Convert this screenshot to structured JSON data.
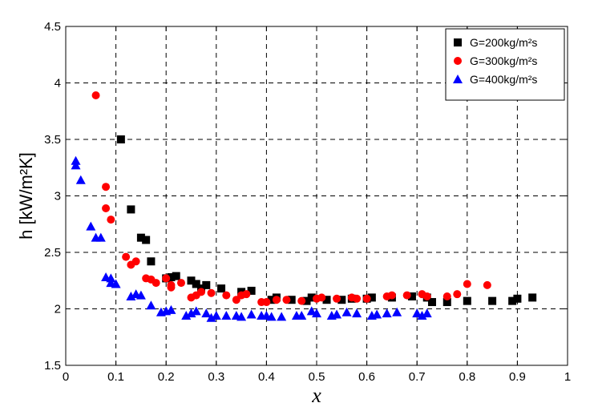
{
  "chart_data": {
    "type": "scatter",
    "xlabel": "x",
    "ylabel": "h [kW/m²K]",
    "xlim": [
      0,
      1
    ],
    "ylim": [
      1.5,
      4.5
    ],
    "xticks": [
      "0",
      "0.1",
      "0.2",
      "0.3",
      "0.4",
      "0.5",
      "0.6",
      "0.7",
      "0.8",
      "0.9",
      "1"
    ],
    "yticks": [
      "1.5",
      "2",
      "2.5",
      "3",
      "3.5",
      "4",
      "4.5"
    ],
    "grid": true,
    "legend_position": "top-right",
    "series": [
      {
        "name": "G=200kg/m²s",
        "marker": "square",
        "color": "#000000",
        "points": [
          [
            0.11,
            3.5
          ],
          [
            0.13,
            2.88
          ],
          [
            0.15,
            2.63
          ],
          [
            0.16,
            2.61
          ],
          [
            0.17,
            2.42
          ],
          [
            0.2,
            2.27
          ],
          [
            0.21,
            2.28
          ],
          [
            0.22,
            2.29
          ],
          [
            0.25,
            2.25
          ],
          [
            0.26,
            2.22
          ],
          [
            0.27,
            2.18
          ],
          [
            0.28,
            2.21
          ],
          [
            0.31,
            2.18
          ],
          [
            0.35,
            2.15
          ],
          [
            0.37,
            2.16
          ],
          [
            0.41,
            2.08
          ],
          [
            0.42,
            2.1
          ],
          [
            0.45,
            2.08
          ],
          [
            0.48,
            2.07
          ],
          [
            0.49,
            2.1
          ],
          [
            0.52,
            2.08
          ],
          [
            0.55,
            2.08
          ],
          [
            0.57,
            2.09
          ],
          [
            0.6,
            2.09
          ],
          [
            0.61,
            2.1
          ],
          [
            0.65,
            2.1
          ],
          [
            0.69,
            2.11
          ],
          [
            0.72,
            2.1
          ],
          [
            0.73,
            2.06
          ],
          [
            0.76,
            2.06
          ],
          [
            0.8,
            2.07
          ],
          [
            0.85,
            2.07
          ],
          [
            0.89,
            2.07
          ],
          [
            0.9,
            2.09
          ],
          [
            0.93,
            2.1
          ]
        ]
      },
      {
        "name": "G=300kg/m²s",
        "marker": "circle",
        "color": "#ff0000",
        "points": [
          [
            0.06,
            3.89
          ],
          [
            0.08,
            3.08
          ],
          [
            0.08,
            2.89
          ],
          [
            0.09,
            2.79
          ],
          [
            0.12,
            2.46
          ],
          [
            0.13,
            2.39
          ],
          [
            0.14,
            2.42
          ],
          [
            0.16,
            2.27
          ],
          [
            0.17,
            2.26
          ],
          [
            0.18,
            2.23
          ],
          [
            0.2,
            2.27
          ],
          [
            0.21,
            2.21
          ],
          [
            0.21,
            2.19
          ],
          [
            0.23,
            2.23
          ],
          [
            0.25,
            2.1
          ],
          [
            0.26,
            2.12
          ],
          [
            0.27,
            2.15
          ],
          [
            0.29,
            2.14
          ],
          [
            0.32,
            2.12
          ],
          [
            0.34,
            2.08
          ],
          [
            0.35,
            2.12
          ],
          [
            0.36,
            2.13
          ],
          [
            0.39,
            2.06
          ],
          [
            0.4,
            2.06
          ],
          [
            0.42,
            2.08
          ],
          [
            0.44,
            2.08
          ],
          [
            0.47,
            2.07
          ],
          [
            0.5,
            2.09
          ],
          [
            0.51,
            2.1
          ],
          [
            0.54,
            2.09
          ],
          [
            0.57,
            2.1
          ],
          [
            0.58,
            2.09
          ],
          [
            0.6,
            2.09
          ],
          [
            0.64,
            2.11
          ],
          [
            0.65,
            2.12
          ],
          [
            0.68,
            2.12
          ],
          [
            0.71,
            2.13
          ],
          [
            0.72,
            2.11
          ],
          [
            0.76,
            2.11
          ],
          [
            0.78,
            2.13
          ],
          [
            0.8,
            2.22
          ],
          [
            0.84,
            2.21
          ]
        ]
      },
      {
        "name": "G=400kg/m²s",
        "marker": "triangle",
        "color": "#0000ff",
        "points": [
          [
            0.02,
            3.31
          ],
          [
            0.02,
            3.27
          ],
          [
            0.03,
            3.14
          ],
          [
            0.05,
            2.73
          ],
          [
            0.06,
            2.63
          ],
          [
            0.07,
            2.63
          ],
          [
            0.08,
            2.28
          ],
          [
            0.09,
            2.27
          ],
          [
            0.09,
            2.23
          ],
          [
            0.1,
            2.22
          ],
          [
            0.13,
            2.11
          ],
          [
            0.14,
            2.13
          ],
          [
            0.15,
            2.12
          ],
          [
            0.17,
            2.03
          ],
          [
            0.19,
            1.97
          ],
          [
            0.2,
            1.98
          ],
          [
            0.21,
            1.99
          ],
          [
            0.24,
            1.94
          ],
          [
            0.25,
            1.96
          ],
          [
            0.26,
            1.98
          ],
          [
            0.28,
            1.96
          ],
          [
            0.29,
            1.92
          ],
          [
            0.3,
            1.94
          ],
          [
            0.32,
            1.94
          ],
          [
            0.34,
            1.94
          ],
          [
            0.35,
            1.93
          ],
          [
            0.37,
            1.95
          ],
          [
            0.39,
            1.94
          ],
          [
            0.4,
            1.94
          ],
          [
            0.41,
            1.93
          ],
          [
            0.43,
            1.93
          ],
          [
            0.46,
            1.94
          ],
          [
            0.47,
            1.94
          ],
          [
            0.49,
            1.98
          ],
          [
            0.5,
            1.96
          ],
          [
            0.53,
            1.94
          ],
          [
            0.54,
            1.95
          ],
          [
            0.56,
            1.97
          ],
          [
            0.58,
            1.96
          ],
          [
            0.61,
            1.94
          ],
          [
            0.62,
            1.95
          ],
          [
            0.64,
            1.96
          ],
          [
            0.66,
            1.97
          ],
          [
            0.7,
            1.96
          ],
          [
            0.71,
            1.94
          ],
          [
            0.72,
            1.96
          ]
        ]
      }
    ]
  }
}
